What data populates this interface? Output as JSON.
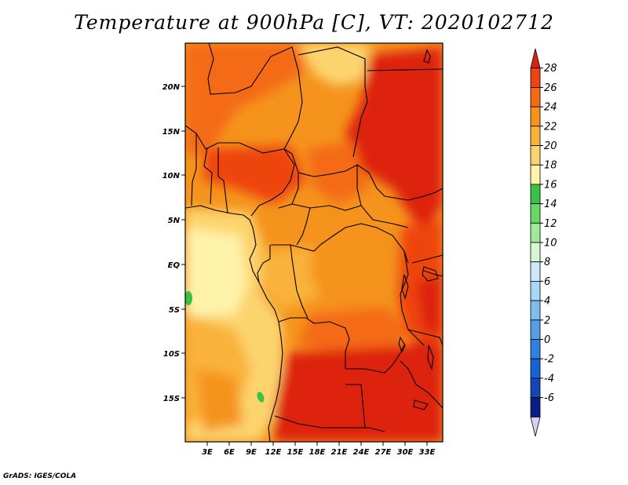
{
  "title": "Temperature at 900hPa [C], VT: 2020102712",
  "footer": "GrADS: IGES/COLA",
  "lat_labels": [
    "20N",
    "15N",
    "10N",
    "5N",
    "EQ",
    "5S",
    "10S",
    "15S"
  ],
  "lon_labels": [
    "3E",
    "6E",
    "9E",
    "12E",
    "15E",
    "18E",
    "21E",
    "24E",
    "27E",
    "30E",
    "33E"
  ],
  "colorbar": {
    "labels": [
      "28",
      "26",
      "24",
      "22",
      "20",
      "18",
      "16",
      "14",
      "12",
      "10",
      "8",
      "6",
      "4",
      "2",
      "0",
      "-2",
      "-4",
      "-6"
    ],
    "colors": [
      "#dd2211",
      "#ee4411",
      "#f46a16",
      "#f5931d",
      "#f9b23a",
      "#fcd46e",
      "#fff3aa",
      "#39c149",
      "#67d866",
      "#9fe89d",
      "#d5f7d1",
      "#cde8fb",
      "#a8d6f5",
      "#7ebdf0",
      "#559fe6",
      "#2f81dd",
      "#1863cf",
      "#1446b6",
      "#0c1c87",
      "#d3d3f7"
    ]
  }
}
